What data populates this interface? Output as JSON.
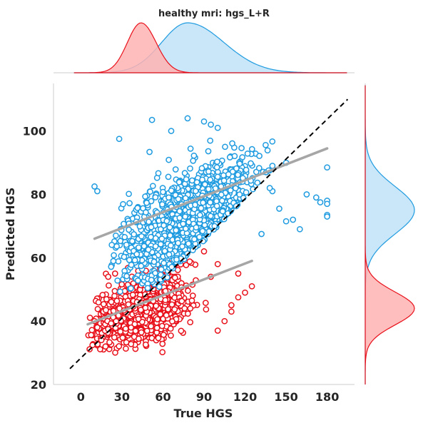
{
  "chart_data": {
    "type": "scatter",
    "title": "healthy mri: hgs_L+R",
    "xlabel": "True HGS",
    "ylabel": "Predicted HGS",
    "xlim": [
      -20,
      200
    ],
    "ylim": [
      20,
      115
    ],
    "xticks": [
      0,
      30,
      60,
      90,
      120,
      150,
      180
    ],
    "yticks": [
      20,
      40,
      60,
      80,
      100
    ],
    "grid": false,
    "series": [
      {
        "color": "#1f9be0",
        "fill": "#bfe3f7",
        "x_range": [
          10,
          180
        ],
        "y_range": [
          48,
          104
        ],
        "regression": {
          "x": [
            10,
            180
          ],
          "y": [
            66,
            94.5
          ]
        },
        "marginal_x_peak": 78,
        "marginal_y_peak": 75,
        "samples": [
          [
            10,
            82.5
          ],
          [
            12,
            81
          ],
          [
            28,
            97.5
          ],
          [
            180,
            78
          ],
          [
            180,
            77
          ],
          [
            180,
            73.5
          ],
          [
            180,
            73
          ],
          [
            180,
            88.5
          ],
          [
            172,
            79
          ],
          [
            175,
            77.5
          ],
          [
            165,
            80
          ],
          [
            160,
            69
          ],
          [
            150,
            71.5
          ],
          [
            155,
            72
          ],
          [
            145,
            75.5
          ],
          [
            140,
            81
          ],
          [
            138,
            82
          ],
          [
            132,
            67.5
          ],
          [
            140,
            89
          ],
          [
            150,
            90
          ],
          [
            52,
            103.5
          ],
          [
            78,
            104
          ],
          [
            90,
            103
          ],
          [
            95,
            102
          ],
          [
            100,
            101
          ],
          [
            66,
            100
          ]
        ]
      },
      {
        "color": "#e8101a",
        "fill": "#ffb3b3",
        "x_range": [
          5,
          125
        ],
        "y_range": [
          30,
          67
        ],
        "regression": {
          "x": [
            5,
            125
          ],
          "y": [
            39,
            59
          ]
        },
        "marginal_x_peak": 44,
        "marginal_y_peak": 44,
        "samples": [
          [
            10,
            40
          ],
          [
            12,
            38
          ],
          [
            15,
            34
          ],
          [
            18,
            32
          ],
          [
            20,
            54
          ],
          [
            25,
            55
          ],
          [
            100,
            37
          ],
          [
            105,
            40
          ],
          [
            110,
            43
          ],
          [
            110,
            45
          ],
          [
            115,
            47.5
          ],
          [
            120,
            49
          ],
          [
            125,
            51
          ],
          [
            115,
            55
          ],
          [
            100,
            58
          ],
          [
            95,
            54
          ],
          [
            90,
            62
          ],
          [
            80,
            44
          ]
        ]
      }
    ],
    "identity_line": {
      "x": [
        -8,
        195
      ],
      "y": [
        25,
        110
      ]
    }
  }
}
